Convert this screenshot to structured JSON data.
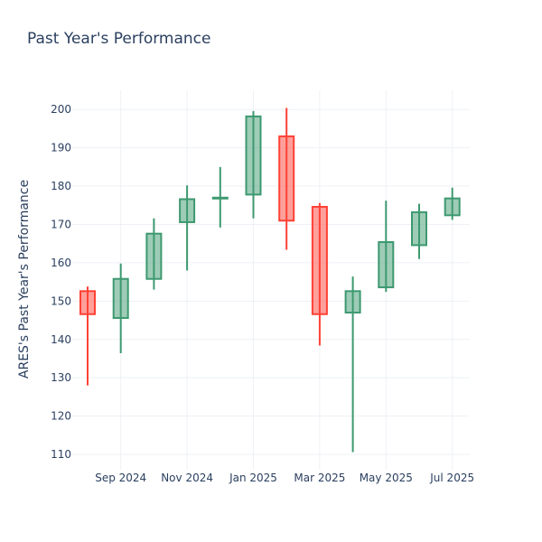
{
  "chart_data": {
    "type": "candlestick",
    "title": "Past Year's Performance",
    "ylabel": "ARES's Past Year's Performance",
    "xlabel": "",
    "ylim": [
      106,
      205
    ],
    "y_ticks": [
      110,
      120,
      130,
      140,
      150,
      160,
      170,
      180,
      190,
      200
    ],
    "x_ticks": [
      {
        "label": "Sep 2024",
        "pos": 1
      },
      {
        "label": "Nov 2024",
        "pos": 3
      },
      {
        "label": "Jan 2025",
        "pos": 5
      },
      {
        "label": "Mar 2025",
        "pos": 7
      },
      {
        "label": "May 2025",
        "pos": 9
      },
      {
        "label": "Jul 2025",
        "pos": 11
      }
    ],
    "increasing_color": "#3d9970",
    "decreasing_color": "#ff4136",
    "candles": [
      {
        "period": "Aug 2024",
        "open": 152.6,
        "high": 153.8,
        "low": 128.0,
        "close": 146.6
      },
      {
        "period": "Sep 2024",
        "open": 145.6,
        "high": 159.8,
        "low": 136.4,
        "close": 155.8
      },
      {
        "period": "Oct 2024",
        "open": 155.8,
        "high": 171.6,
        "low": 153.0,
        "close": 167.6
      },
      {
        "period": "Nov 2024",
        "open": 170.6,
        "high": 180.2,
        "low": 158.0,
        "close": 176.6
      },
      {
        "period": "Dec 2024",
        "open": 177.0,
        "high": 185.0,
        "low": 169.2,
        "close": 177.0
      },
      {
        "period": "Jan 2025",
        "open": 177.8,
        "high": 199.6,
        "low": 171.6,
        "close": 198.2
      },
      {
        "period": "Feb 2025",
        "open": 193.0,
        "high": 200.4,
        "low": 163.4,
        "close": 171.0
      },
      {
        "period": "Mar 2025",
        "open": 174.6,
        "high": 175.6,
        "low": 138.4,
        "close": 146.6
      },
      {
        "period": "Apr 2025",
        "open": 147.0,
        "high": 156.4,
        "low": 110.6,
        "close": 152.6
      },
      {
        "period": "May 2025",
        "open": 153.6,
        "high": 176.2,
        "low": 152.4,
        "close": 165.4
      },
      {
        "period": "Jun 2025",
        "open": 164.6,
        "high": 175.4,
        "low": 161.0,
        "close": 173.2
      },
      {
        "period": "Jul 2025",
        "open": 172.4,
        "high": 179.6,
        "low": 171.2,
        "close": 176.8
      }
    ]
  }
}
